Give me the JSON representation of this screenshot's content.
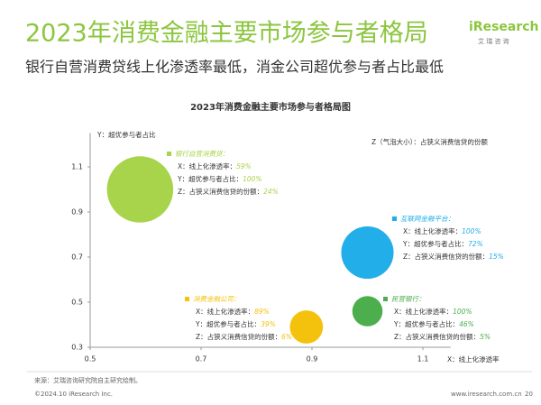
{
  "slide": {
    "title": "2023年消费金融主要市场参与者格局",
    "subtitle": "银行自营消费贷线上化渗透率最低，消金公司超优参与者占比最低",
    "logo": "iResearch",
    "logo_sub": "艾 瑞 咨 询",
    "source": "来源：艾瑞咨询研究院自主研究绘制。",
    "copyright": "©2024.10 iResearch Inc.",
    "website": "www.iresearch.com.cn",
    "page": "20"
  },
  "chart_data": {
    "type": "bubble",
    "title": "2023年消费金融主要市场参与者格局图",
    "x_label": "X：线上化渗透率",
    "y_label": "Y：超优参与者占比",
    "size_note": "Z（气泡大小）：占狭义消费信贷的份额",
    "annotation_labels": [
      "X：线上化渗透率：",
      "Y：超优参与者占比：",
      "Z：占狭义消费信贷的份额："
    ],
    "xlim": [
      0.5,
      1.15
    ],
    "ylim": [
      0.3,
      1.25
    ],
    "xticks": [
      0.5,
      0.7,
      0.9,
      1.1
    ],
    "yticks": [
      0.3,
      0.5,
      0.7,
      0.9,
      1.1
    ],
    "series": [
      {
        "name": "银行自营消费贷：",
        "color": "#a8d44c",
        "x": 0.59,
        "y": 1.0,
        "size": 24,
        "x_label": "59%",
        "y_label": "100%",
        "size_label": "24%"
      },
      {
        "name": "互联网金融平台：",
        "color": "#22aee8",
        "x": 1.0,
        "y": 0.72,
        "size": 15,
        "x_label": "100%",
        "y_label": "72%",
        "size_label": "15%"
      },
      {
        "name": "消费金融公司：",
        "color": "#f4c20d",
        "x": 0.89,
        "y": 0.39,
        "size": 6,
        "x_label": "89%",
        "y_label": "39%",
        "size_label": "6%"
      },
      {
        "name": "民营银行：",
        "color": "#4cae4c",
        "x": 1.0,
        "y": 0.46,
        "size": 5,
        "x_label": "100%",
        "y_label": "46%",
        "size_label": "5%"
      }
    ]
  }
}
